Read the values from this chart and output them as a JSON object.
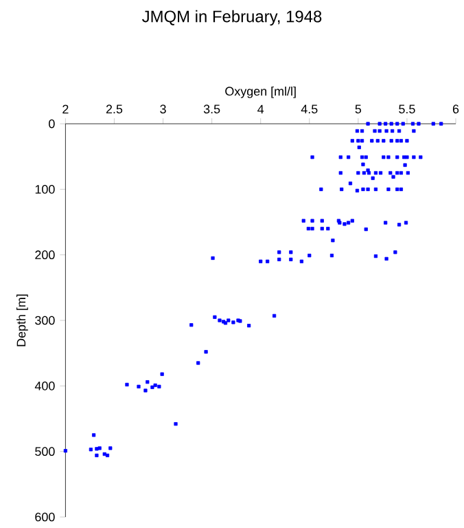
{
  "chart_data": {
    "type": "scatter",
    "title": "JMQM in February, 1948",
    "xlabel": "Oxygen [ml/l]",
    "ylabel": "Depth [m]",
    "xlim": [
      2,
      6
    ],
    "ylim": [
      600,
      0
    ],
    "xticks": [
      2,
      2.5,
      3,
      3.5,
      4,
      4.5,
      5,
      5.5,
      6
    ],
    "yticks": [
      0,
      100,
      200,
      300,
      400,
      500,
      600
    ],
    "marker": "square",
    "series": [
      {
        "color": "#0000ff",
        "x": [
          5.1,
          5.22,
          5.28,
          5.34,
          5.4,
          5.46,
          5.56,
          5.62,
          5.77,
          5.85,
          4.99,
          5.04,
          5.17,
          5.22,
          5.29,
          5.35,
          5.42,
          5.57,
          4.94,
          5.0,
          5.04,
          5.14,
          5.2,
          5.26,
          5.34,
          5.4,
          5.44,
          5.5,
          5.01,
          4.53,
          4.82,
          4.9,
          5.04,
          5.08,
          5.26,
          5.31,
          5.4,
          5.47,
          5.5,
          5.57,
          5.64,
          5.05,
          5.48,
          5.1,
          4.82,
          5.0,
          5.06,
          5.11,
          5.18,
          5.23,
          5.33,
          5.4,
          5.44,
          5.51,
          5.36,
          5.15,
          4.92,
          4.62,
          4.83,
          4.99,
          5.05,
          5.1,
          5.18,
          5.31,
          5.4,
          5.44,
          4.44,
          4.53,
          4.63,
          4.8,
          4.81,
          4.86,
          4.9,
          4.94,
          5.28,
          5.42,
          5.49,
          4.49,
          4.53,
          4.63,
          4.69,
          5.08,
          4.74,
          4.19,
          4.31,
          4.5,
          4.73,
          5.18,
          5.29,
          5.38,
          4.19,
          4.31,
          4.0,
          4.07,
          4.42,
          3.51,
          4.14,
          3.53,
          3.29,
          3.58,
          3.62,
          3.64,
          3.67,
          3.72,
          3.77,
          3.79,
          3.88,
          3.44,
          3.36,
          2.99,
          2.63,
          2.75,
          2.84,
          2.82,
          2.89,
          2.92,
          2.96,
          3.13,
          2.29,
          2.26,
          2.32,
          2.35,
          2.32,
          2.4,
          2.43,
          2.46,
          2.0
        ],
        "values": [
          0,
          0,
          0,
          0,
          0,
          0,
          0,
          0,
          0,
          0,
          11,
          11,
          11,
          11,
          11,
          11,
          11,
          11,
          26,
          26,
          26,
          26,
          26,
          26,
          26,
          26,
          26,
          26,
          36,
          51,
          51,
          51,
          51,
          51,
          51,
          51,
          51,
          51,
          51,
          51,
          51,
          62,
          63,
          71,
          75,
          75,
          75,
          75,
          75,
          75,
          75,
          75,
          75,
          75,
          81,
          83,
          91,
          100,
          100,
          102,
          100,
          100,
          100,
          100,
          100,
          100,
          148,
          148,
          148,
          148,
          151,
          153,
          151,
          148,
          151,
          154,
          151,
          160,
          160,
          160,
          160,
          161,
          178,
          196,
          196,
          201,
          201,
          202,
          206,
          196,
          207,
          207,
          210,
          210,
          210,
          205,
          293,
          295,
          307,
          300,
          302,
          304,
          300,
          303,
          300,
          301,
          308,
          348,
          365,
          382,
          398,
          401,
          394,
          407,
          402,
          399,
          401,
          458,
          475,
          497,
          496,
          495,
          506,
          504,
          506,
          495,
          499
        ]
      }
    ]
  }
}
